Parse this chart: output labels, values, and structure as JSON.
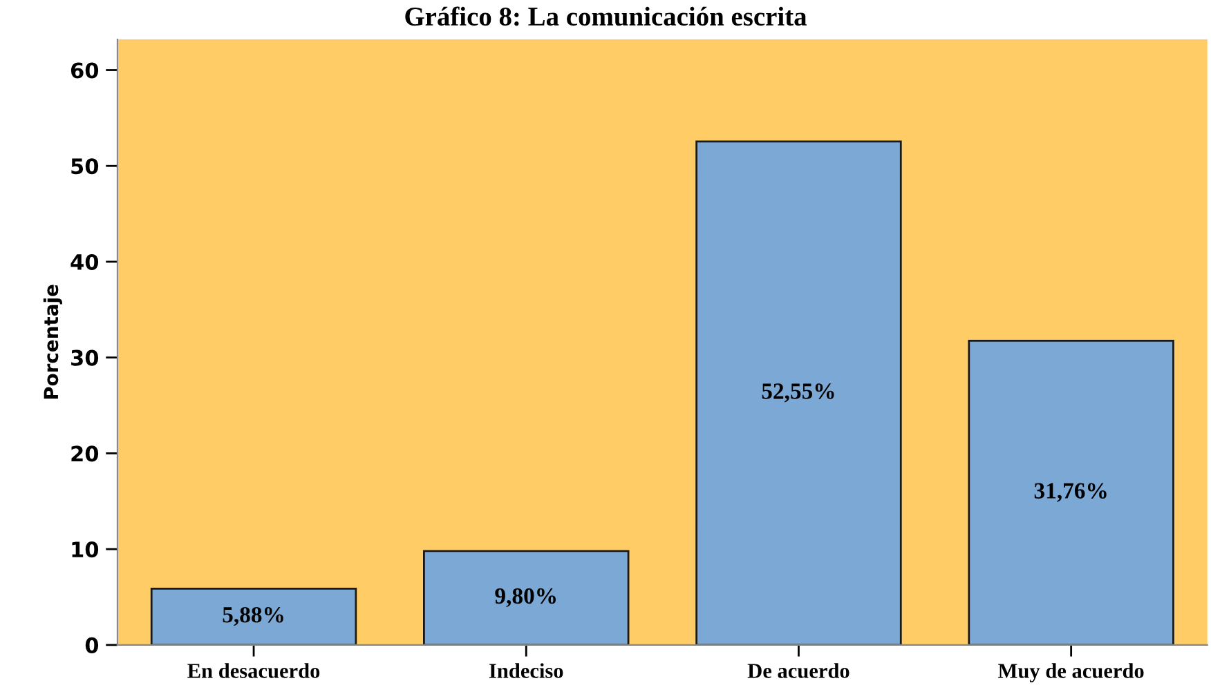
{
  "chart_data": {
    "type": "bar",
    "title": "Gráfico 8: La comunicación escrita",
    "ylabel": "Porcentaje",
    "categories": [
      "En desacuerdo",
      "Indeciso",
      "De acuerdo",
      "Muy de acuerdo"
    ],
    "values": [
      5.88,
      9.8,
      52.55,
      31.76
    ],
    "value_labels": [
      "5,88%",
      "9,80%",
      "52,55%",
      "31,76%"
    ],
    "color": "#7ba8d5",
    "ylim": [
      0,
      63.2
    ],
    "yticks": [
      0,
      10,
      20,
      30,
      40,
      50,
      60
    ],
    "grid": false,
    "legend": false
  }
}
